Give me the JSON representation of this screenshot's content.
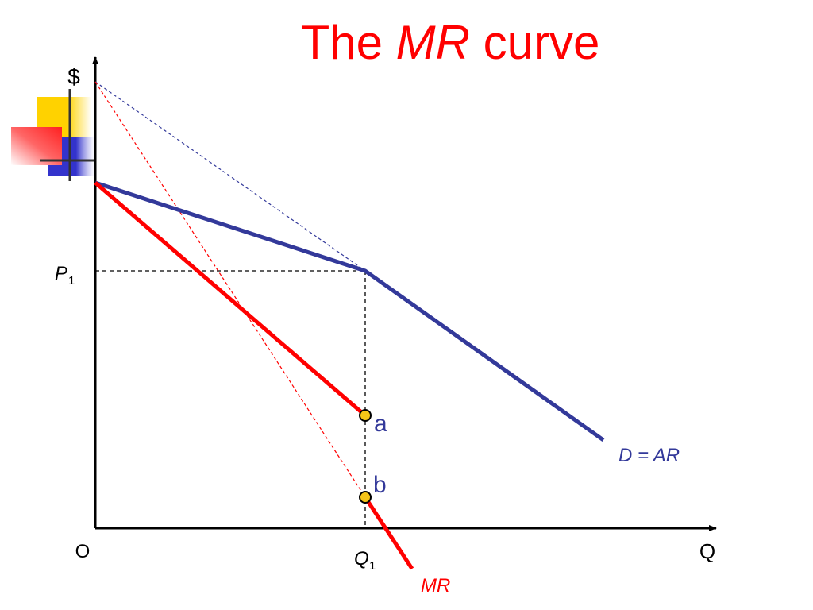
{
  "title": {
    "prefix": "The",
    "emphasis": "MR",
    "suffix": "curve"
  },
  "axes": {
    "y_label": "$",
    "x_label": "Q",
    "origin_label": "O"
  },
  "ticks": {
    "price": {
      "letter": "P",
      "subscript": "1"
    },
    "quantity": {
      "letter": "Q",
      "subscript": "1"
    }
  },
  "curves": {
    "demand": {
      "label": "D = AR",
      "color": "#33399a"
    },
    "marginal_revenue": {
      "label": "MR",
      "color": "#ff0000"
    }
  },
  "points": [
    {
      "label": "a",
      "color": "#f5c518"
    },
    {
      "label": "b",
      "color": "#f5c518"
    }
  ],
  "colors": {
    "title": "#ff0000",
    "point_label": "#33399a",
    "deco_yellow": "#ffd200",
    "deco_blue": "#3333cc",
    "deco_red": "#ff3333"
  }
}
